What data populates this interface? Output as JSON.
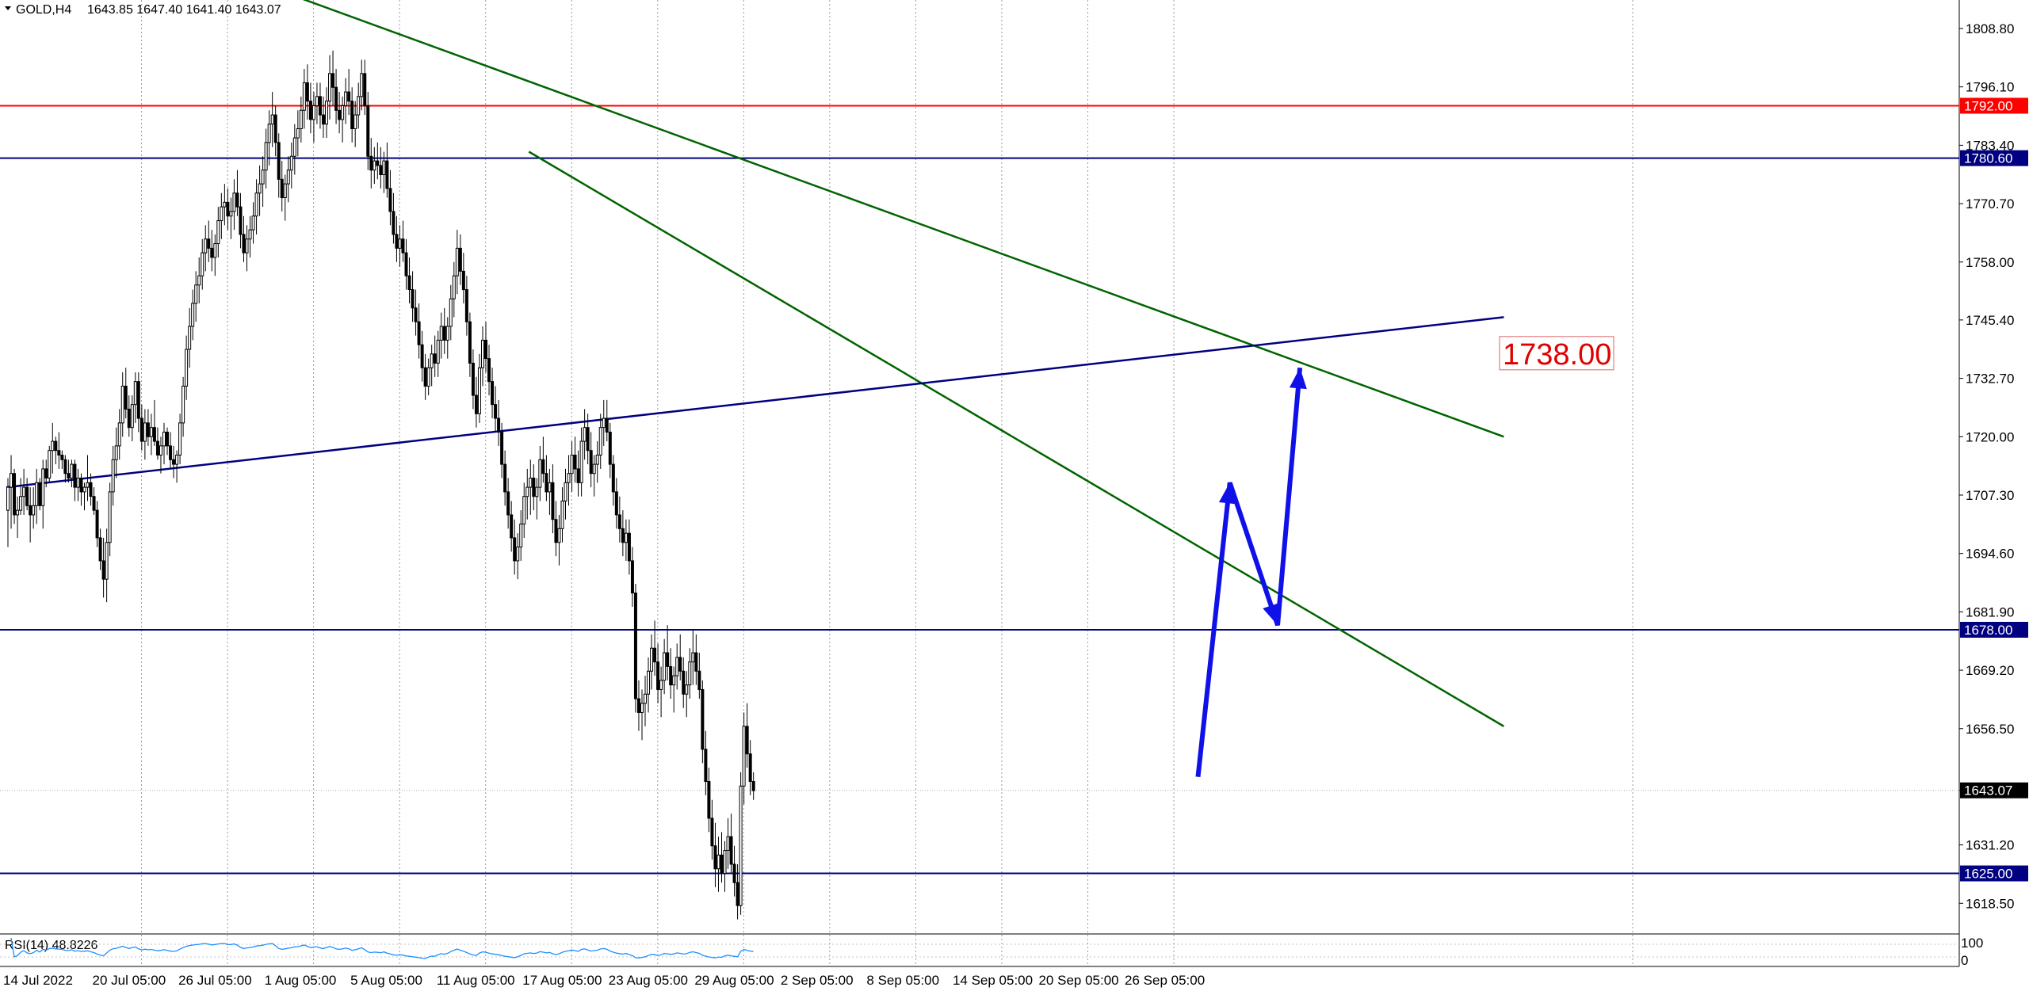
{
  "window": {
    "symbol_label": "GOLD,H4",
    "ohlc_label": "1643.85 1647.40 1641.40 1643.07"
  },
  "indicator": {
    "label": "RSI(14) 48.8226",
    "scale_top": "100",
    "scale_bottom": "0"
  },
  "colors": {
    "background": "#ffffff",
    "grid": "#9a9a9a",
    "candle": "#000000",
    "resistance_red": "#ff0000",
    "level_navy": "#000080",
    "trend_green": "#006400",
    "forecast_arrow": "#1010e8",
    "rsi_line": "#1e90ff",
    "price_tag_text": "#ffffff"
  },
  "chart_data": {
    "type": "candlestick",
    "symbol": "GOLD",
    "timeframe": "H4",
    "ylim": [
      1612.0,
      1815.0
    ],
    "y_ticks": [
      "1808.80",
      "1796.10",
      "1783.40",
      "1770.70",
      "1758.00",
      "1745.40",
      "1732.70",
      "1720.00",
      "1707.30",
      "1694.60",
      "1681.90",
      "1669.20",
      "1656.50",
      "1643.07",
      "1631.20",
      "1618.50"
    ],
    "x_tick_labels": [
      "14 Jul 2022",
      "20 Jul 05:00",
      "26 Jul 05:00",
      "1 Aug 05:00",
      "5 Aug 05:00",
      "11 Aug 05:00",
      "17 Aug 05:00",
      "23 Aug 05:00",
      "29 Aug 05:00",
      "2 Sep 05:00",
      "8 Sep 05:00",
      "14 Sep 05:00",
      "20 Sep 05:00",
      "26 Sep 05:00"
    ],
    "x_tick_bar_index": [
      0,
      27,
      54,
      81,
      108,
      135,
      162,
      189,
      216,
      243,
      270,
      297,
      324,
      351
    ],
    "bars_total_in_view": 470,
    "current_price": 1643.07,
    "horizontal_levels": [
      {
        "price": 1792.0,
        "label": "1792.00",
        "color": "#ff0000"
      },
      {
        "price": 1780.6,
        "label": "1780.60",
        "color": "#000080"
      },
      {
        "price": 1678.0,
        "label": "1678.00",
        "color": "#000080"
      },
      {
        "price": 1625.0,
        "label": "1625.00",
        "color": "#000080"
      }
    ],
    "trendlines": [
      {
        "name": "upper-down-trend",
        "color": "#006400",
        "points": [
          [
            82,
            1818.0
          ],
          [
            470,
            1720.0
          ]
        ]
      },
      {
        "name": "lower-down-trend",
        "color": "#006400",
        "points": [
          [
            164,
            1782.0
          ],
          [
            470,
            1657.0
          ]
        ]
      },
      {
        "name": "rising-trend",
        "color": "#000080",
        "points": [
          [
            0,
            1709.0
          ],
          [
            470,
            1746.0
          ]
        ]
      }
    ],
    "annotations": [
      {
        "text": "1738.00",
        "bar": 373,
        "price": 1738.0,
        "color": "#e00000"
      }
    ],
    "forecast_path": [
      [
        374,
        1646.0
      ],
      [
        384,
        1710.0
      ],
      [
        399,
        1679.0
      ],
      [
        406,
        1735.0
      ]
    ],
    "rsi_last": 48.8226,
    "ohlc": [
      [
        1704,
        1711,
        1696,
        1709
      ],
      [
        1709,
        1716,
        1700,
        1712
      ],
      [
        1712,
        1713,
        1701,
        1703
      ],
      [
        1703,
        1707,
        1698,
        1704
      ],
      [
        1704,
        1711,
        1703,
        1707
      ],
      [
        1707,
        1713,
        1703,
        1709
      ],
      [
        1709,
        1711,
        1704,
        1705
      ],
      [
        1705,
        1709,
        1697,
        1703
      ],
      [
        1703,
        1709,
        1700,
        1705
      ],
      [
        1705,
        1713,
        1701,
        1710
      ],
      [
        1710,
        1711,
        1704,
        1705
      ],
      [
        1705,
        1715,
        1700,
        1713
      ],
      [
        1713,
        1715,
        1709,
        1711
      ],
      [
        1711,
        1718,
        1710,
        1717
      ],
      [
        1717,
        1723,
        1712,
        1719
      ],
      [
        1719,
        1720,
        1714,
        1717
      ],
      [
        1717,
        1721,
        1713,
        1716
      ],
      [
        1716,
        1717,
        1713,
        1715
      ],
      [
        1715,
        1716,
        1710,
        1712
      ],
      [
        1712,
        1715,
        1710,
        1711
      ],
      [
        1711,
        1715,
        1709,
        1714
      ],
      [
        1714,
        1715,
        1706,
        1709
      ],
      [
        1709,
        1713,
        1706,
        1711
      ],
      [
        1711,
        1712,
        1705,
        1708
      ],
      [
        1708,
        1710,
        1704,
        1709
      ],
      [
        1709,
        1716,
        1706,
        1710
      ],
      [
        1710,
        1712,
        1705,
        1707
      ],
      [
        1707,
        1709,
        1703,
        1704
      ],
      [
        1704,
        1706,
        1696,
        1698
      ],
      [
        1698,
        1700,
        1691,
        1693
      ],
      [
        1693,
        1698,
        1685,
        1689
      ],
      [
        1689,
        1700,
        1684,
        1697
      ],
      [
        1697,
        1710,
        1694,
        1708
      ],
      [
        1708,
        1718,
        1705,
        1715
      ],
      [
        1715,
        1722,
        1711,
        1718
      ],
      [
        1718,
        1726,
        1715,
        1723
      ],
      [
        1723,
        1734,
        1720,
        1731
      ],
      [
        1731,
        1735,
        1724,
        1726
      ],
      [
        1726,
        1729,
        1720,
        1722
      ],
      [
        1722,
        1729,
        1719,
        1727
      ],
      [
        1727,
        1734,
        1723,
        1732
      ],
      [
        1732,
        1734,
        1721,
        1724
      ],
      [
        1724,
        1727,
        1717,
        1719
      ],
      [
        1719,
        1726,
        1715,
        1723
      ],
      [
        1723,
        1726,
        1718,
        1720
      ],
      [
        1720,
        1725,
        1716,
        1722
      ],
      [
        1722,
        1728,
        1718,
        1719
      ],
      [
        1719,
        1722,
        1715,
        1716
      ],
      [
        1716,
        1720,
        1712,
        1718
      ],
      [
        1718,
        1723,
        1714,
        1721
      ],
      [
        1721,
        1722,
        1716,
        1718
      ],
      [
        1718,
        1721,
        1713,
        1715
      ],
      [
        1715,
        1718,
        1711,
        1714
      ],
      [
        1714,
        1717,
        1710,
        1716
      ],
      [
        1716,
        1725,
        1714,
        1723
      ],
      [
        1723,
        1733,
        1720,
        1731
      ],
      [
        1731,
        1742,
        1728,
        1739
      ],
      [
        1739,
        1748,
        1735,
        1744
      ],
      [
        1744,
        1752,
        1741,
        1749
      ],
      [
        1749,
        1756,
        1745,
        1753
      ],
      [
        1753,
        1759,
        1749,
        1755
      ],
      [
        1755,
        1763,
        1752,
        1760
      ],
      [
        1760,
        1766,
        1756,
        1763
      ],
      [
        1763,
        1767,
        1758,
        1761
      ],
      [
        1761,
        1765,
        1756,
        1759
      ],
      [
        1759,
        1764,
        1755,
        1762
      ],
      [
        1762,
        1770,
        1759,
        1767
      ],
      [
        1767,
        1773,
        1763,
        1770
      ],
      [
        1770,
        1775,
        1766,
        1771
      ],
      [
        1771,
        1774,
        1765,
        1768
      ],
      [
        1768,
        1772,
        1763,
        1769
      ],
      [
        1769,
        1776,
        1765,
        1773
      ],
      [
        1773,
        1778,
        1768,
        1770
      ],
      [
        1770,
        1773,
        1761,
        1764
      ],
      [
        1764,
        1768,
        1758,
        1760
      ],
      [
        1760,
        1766,
        1756,
        1763
      ],
      [
        1763,
        1768,
        1759,
        1765
      ],
      [
        1765,
        1771,
        1762,
        1768
      ],
      [
        1768,
        1776,
        1764,
        1773
      ],
      [
        1773,
        1779,
        1768,
        1775
      ],
      [
        1775,
        1781,
        1770,
        1778
      ],
      [
        1778,
        1787,
        1774,
        1784
      ],
      [
        1784,
        1791,
        1779,
        1788
      ],
      [
        1788,
        1795,
        1783,
        1790
      ],
      [
        1790,
        1792,
        1781,
        1784
      ],
      [
        1784,
        1786,
        1772,
        1776
      ],
      [
        1776,
        1780,
        1769,
        1772
      ],
      [
        1772,
        1777,
        1767,
        1775
      ],
      [
        1775,
        1781,
        1771,
        1778
      ],
      [
        1778,
        1784,
        1774,
        1781
      ],
      [
        1781,
        1788,
        1777,
        1785
      ],
      [
        1785,
        1791,
        1781,
        1787
      ],
      [
        1787,
        1794,
        1784,
        1791
      ],
      [
        1791,
        1800,
        1787,
        1797
      ],
      [
        1797,
        1801,
        1789,
        1793
      ],
      [
        1793,
        1797,
        1786,
        1789
      ],
      [
        1789,
        1795,
        1784,
        1792
      ],
      [
        1792,
        1797,
        1788,
        1794
      ],
      [
        1794,
        1797,
        1787,
        1790
      ],
      [
        1790,
        1794,
        1785,
        1788
      ],
      [
        1788,
        1796,
        1785,
        1793
      ],
      [
        1793,
        1803,
        1789,
        1799
      ],
      [
        1799,
        1804,
        1792,
        1796
      ],
      [
        1796,
        1800,
        1788,
        1791
      ],
      [
        1791,
        1795,
        1786,
        1789
      ],
      [
        1789,
        1794,
        1784,
        1792
      ],
      [
        1792,
        1798,
        1788,
        1795
      ],
      [
        1795,
        1800,
        1790,
        1793
      ],
      [
        1793,
        1796,
        1784,
        1787
      ],
      [
        1787,
        1793,
        1783,
        1790
      ],
      [
        1790,
        1797,
        1787,
        1794
      ],
      [
        1794,
        1802,
        1791,
        1799
      ],
      [
        1799,
        1802,
        1790,
        1792
      ],
      [
        1792,
        1795,
        1778,
        1781
      ],
      [
        1781,
        1785,
        1774,
        1778
      ],
      [
        1778,
        1783,
        1775,
        1780
      ],
      [
        1780,
        1784,
        1776,
        1779
      ],
      [
        1779,
        1783,
        1774,
        1777
      ],
      [
        1777,
        1782,
        1773,
        1780
      ],
      [
        1780,
        1784,
        1772,
        1774
      ],
      [
        1774,
        1778,
        1766,
        1769
      ],
      [
        1769,
        1773,
        1762,
        1764
      ],
      [
        1764,
        1768,
        1758,
        1761
      ],
      [
        1761,
        1766,
        1757,
        1763
      ],
      [
        1763,
        1767,
        1758,
        1760
      ],
      [
        1760,
        1763,
        1752,
        1755
      ],
      [
        1755,
        1759,
        1749,
        1752
      ],
      [
        1752,
        1756,
        1745,
        1748
      ],
      [
        1748,
        1752,
        1742,
        1745
      ],
      [
        1745,
        1749,
        1737,
        1740
      ],
      [
        1740,
        1743,
        1732,
        1735
      ],
      [
        1735,
        1738,
        1728,
        1731
      ],
      [
        1731,
        1737,
        1729,
        1735
      ],
      [
        1735,
        1740,
        1731,
        1738
      ],
      [
        1738,
        1742,
        1733,
        1736
      ],
      [
        1736,
        1743,
        1733,
        1741
      ],
      [
        1741,
        1747,
        1737,
        1744
      ],
      [
        1744,
        1748,
        1738,
        1741
      ],
      [
        1741,
        1746,
        1737,
        1744
      ],
      [
        1744,
        1753,
        1741,
        1750
      ],
      [
        1750,
        1758,
        1746,
        1755
      ],
      [
        1755,
        1765,
        1751,
        1761
      ],
      [
        1761,
        1764,
        1753,
        1756
      ],
      [
        1756,
        1760,
        1749,
        1752
      ],
      [
        1752,
        1755,
        1742,
        1745
      ],
      [
        1745,
        1747,
        1733,
        1736
      ],
      [
        1736,
        1739,
        1726,
        1729
      ],
      [
        1729,
        1733,
        1722,
        1725
      ],
      [
        1725,
        1738,
        1723,
        1735
      ],
      [
        1735,
        1744,
        1731,
        1741
      ],
      [
        1741,
        1745,
        1734,
        1737
      ],
      [
        1737,
        1740,
        1729,
        1732
      ],
      [
        1732,
        1735,
        1724,
        1727
      ],
      [
        1727,
        1731,
        1721,
        1724
      ],
      [
        1724,
        1728,
        1718,
        1721
      ],
      [
        1721,
        1723,
        1711,
        1714
      ],
      [
        1714,
        1717,
        1705,
        1708
      ],
      [
        1708,
        1711,
        1700,
        1703
      ],
      [
        1703,
        1706,
        1695,
        1698
      ],
      [
        1698,
        1702,
        1690,
        1693
      ],
      [
        1693,
        1699,
        1689,
        1696
      ],
      [
        1696,
        1704,
        1693,
        1701
      ],
      [
        1701,
        1710,
        1698,
        1707
      ],
      [
        1707,
        1713,
        1702,
        1709
      ],
      [
        1709,
        1715,
        1703,
        1711
      ],
      [
        1711,
        1714,
        1704,
        1707
      ],
      [
        1707,
        1711,
        1702,
        1709
      ],
      [
        1709,
        1718,
        1706,
        1715
      ],
      [
        1715,
        1720,
        1710,
        1712
      ],
      [
        1712,
        1716,
        1706,
        1708
      ],
      [
        1708,
        1713,
        1703,
        1710
      ],
      [
        1710,
        1714,
        1699,
        1702
      ],
      [
        1702,
        1706,
        1694,
        1697
      ],
      [
        1697,
        1703,
        1692,
        1700
      ],
      [
        1700,
        1709,
        1697,
        1706
      ],
      [
        1706,
        1713,
        1702,
        1710
      ],
      [
        1710,
        1716,
        1705,
        1712
      ],
      [
        1712,
        1719,
        1708,
        1716
      ],
      [
        1716,
        1720,
        1710,
        1713
      ],
      [
        1713,
        1717,
        1707,
        1710
      ],
      [
        1710,
        1722,
        1707,
        1719
      ],
      [
        1719,
        1726,
        1715,
        1722
      ],
      [
        1722,
        1725,
        1714,
        1717
      ],
      [
        1717,
        1721,
        1709,
        1712
      ],
      [
        1712,
        1716,
        1707,
        1714
      ],
      [
        1714,
        1719,
        1710,
        1716
      ],
      [
        1716,
        1725,
        1713,
        1722
      ],
      [
        1722,
        1728,
        1718,
        1724
      ],
      [
        1724,
        1728,
        1719,
        1721
      ],
      [
        1721,
        1723,
        1711,
        1714
      ],
      [
        1714,
        1716,
        1705,
        1708
      ],
      [
        1708,
        1711,
        1700,
        1703
      ],
      [
        1703,
        1707,
        1697,
        1700
      ],
      [
        1700,
        1704,
        1694,
        1697
      ],
      [
        1697,
        1702,
        1693,
        1699
      ],
      [
        1699,
        1702,
        1690,
        1693
      ],
      [
        1693,
        1696,
        1683,
        1686
      ],
      [
        1686,
        1688,
        1660,
        1663
      ],
      [
        1663,
        1667,
        1656,
        1660
      ],
      [
        1660,
        1665,
        1654,
        1662
      ],
      [
        1662,
        1668,
        1657,
        1664
      ],
      [
        1664,
        1672,
        1660,
        1669
      ],
      [
        1669,
        1677,
        1665,
        1674
      ],
      [
        1674,
        1680,
        1668,
        1671
      ],
      [
        1671,
        1675,
        1662,
        1665
      ],
      [
        1665,
        1670,
        1659,
        1667
      ],
      [
        1667,
        1676,
        1664,
        1673
      ],
      [
        1673,
        1679,
        1667,
        1670
      ],
      [
        1670,
        1674,
        1663,
        1666
      ],
      [
        1666,
        1670,
        1660,
        1668
      ],
      [
        1668,
        1675,
        1665,
        1672
      ],
      [
        1672,
        1677,
        1667,
        1669
      ],
      [
        1669,
        1672,
        1661,
        1664
      ],
      [
        1664,
        1669,
        1659,
        1666
      ],
      [
        1666,
        1674,
        1663,
        1671
      ],
      [
        1671,
        1678,
        1666,
        1673
      ],
      [
        1673,
        1677,
        1666,
        1669
      ],
      [
        1669,
        1673,
        1663,
        1665
      ],
      [
        1665,
        1667,
        1649,
        1652
      ],
      [
        1652,
        1656,
        1642,
        1645
      ],
      [
        1645,
        1648,
        1634,
        1637
      ],
      [
        1637,
        1641,
        1628,
        1631
      ],
      [
        1631,
        1636,
        1622,
        1626
      ],
      [
        1626,
        1633,
        1621,
        1629
      ],
      [
        1629,
        1634,
        1623,
        1625
      ],
      [
        1625,
        1632,
        1621,
        1630
      ],
      [
        1630,
        1637,
        1626,
        1633
      ],
      [
        1633,
        1638,
        1625,
        1627
      ],
      [
        1627,
        1631,
        1620,
        1623
      ],
      [
        1623,
        1627,
        1615,
        1618
      ],
      [
        1618,
        1647,
        1616,
        1644
      ],
      [
        1644,
        1660,
        1640,
        1657
      ],
      [
        1657,
        1662,
        1648,
        1651
      ],
      [
        1651,
        1654,
        1642,
        1645
      ],
      [
        1645,
        1647,
        1641,
        1643
      ]
    ]
  }
}
